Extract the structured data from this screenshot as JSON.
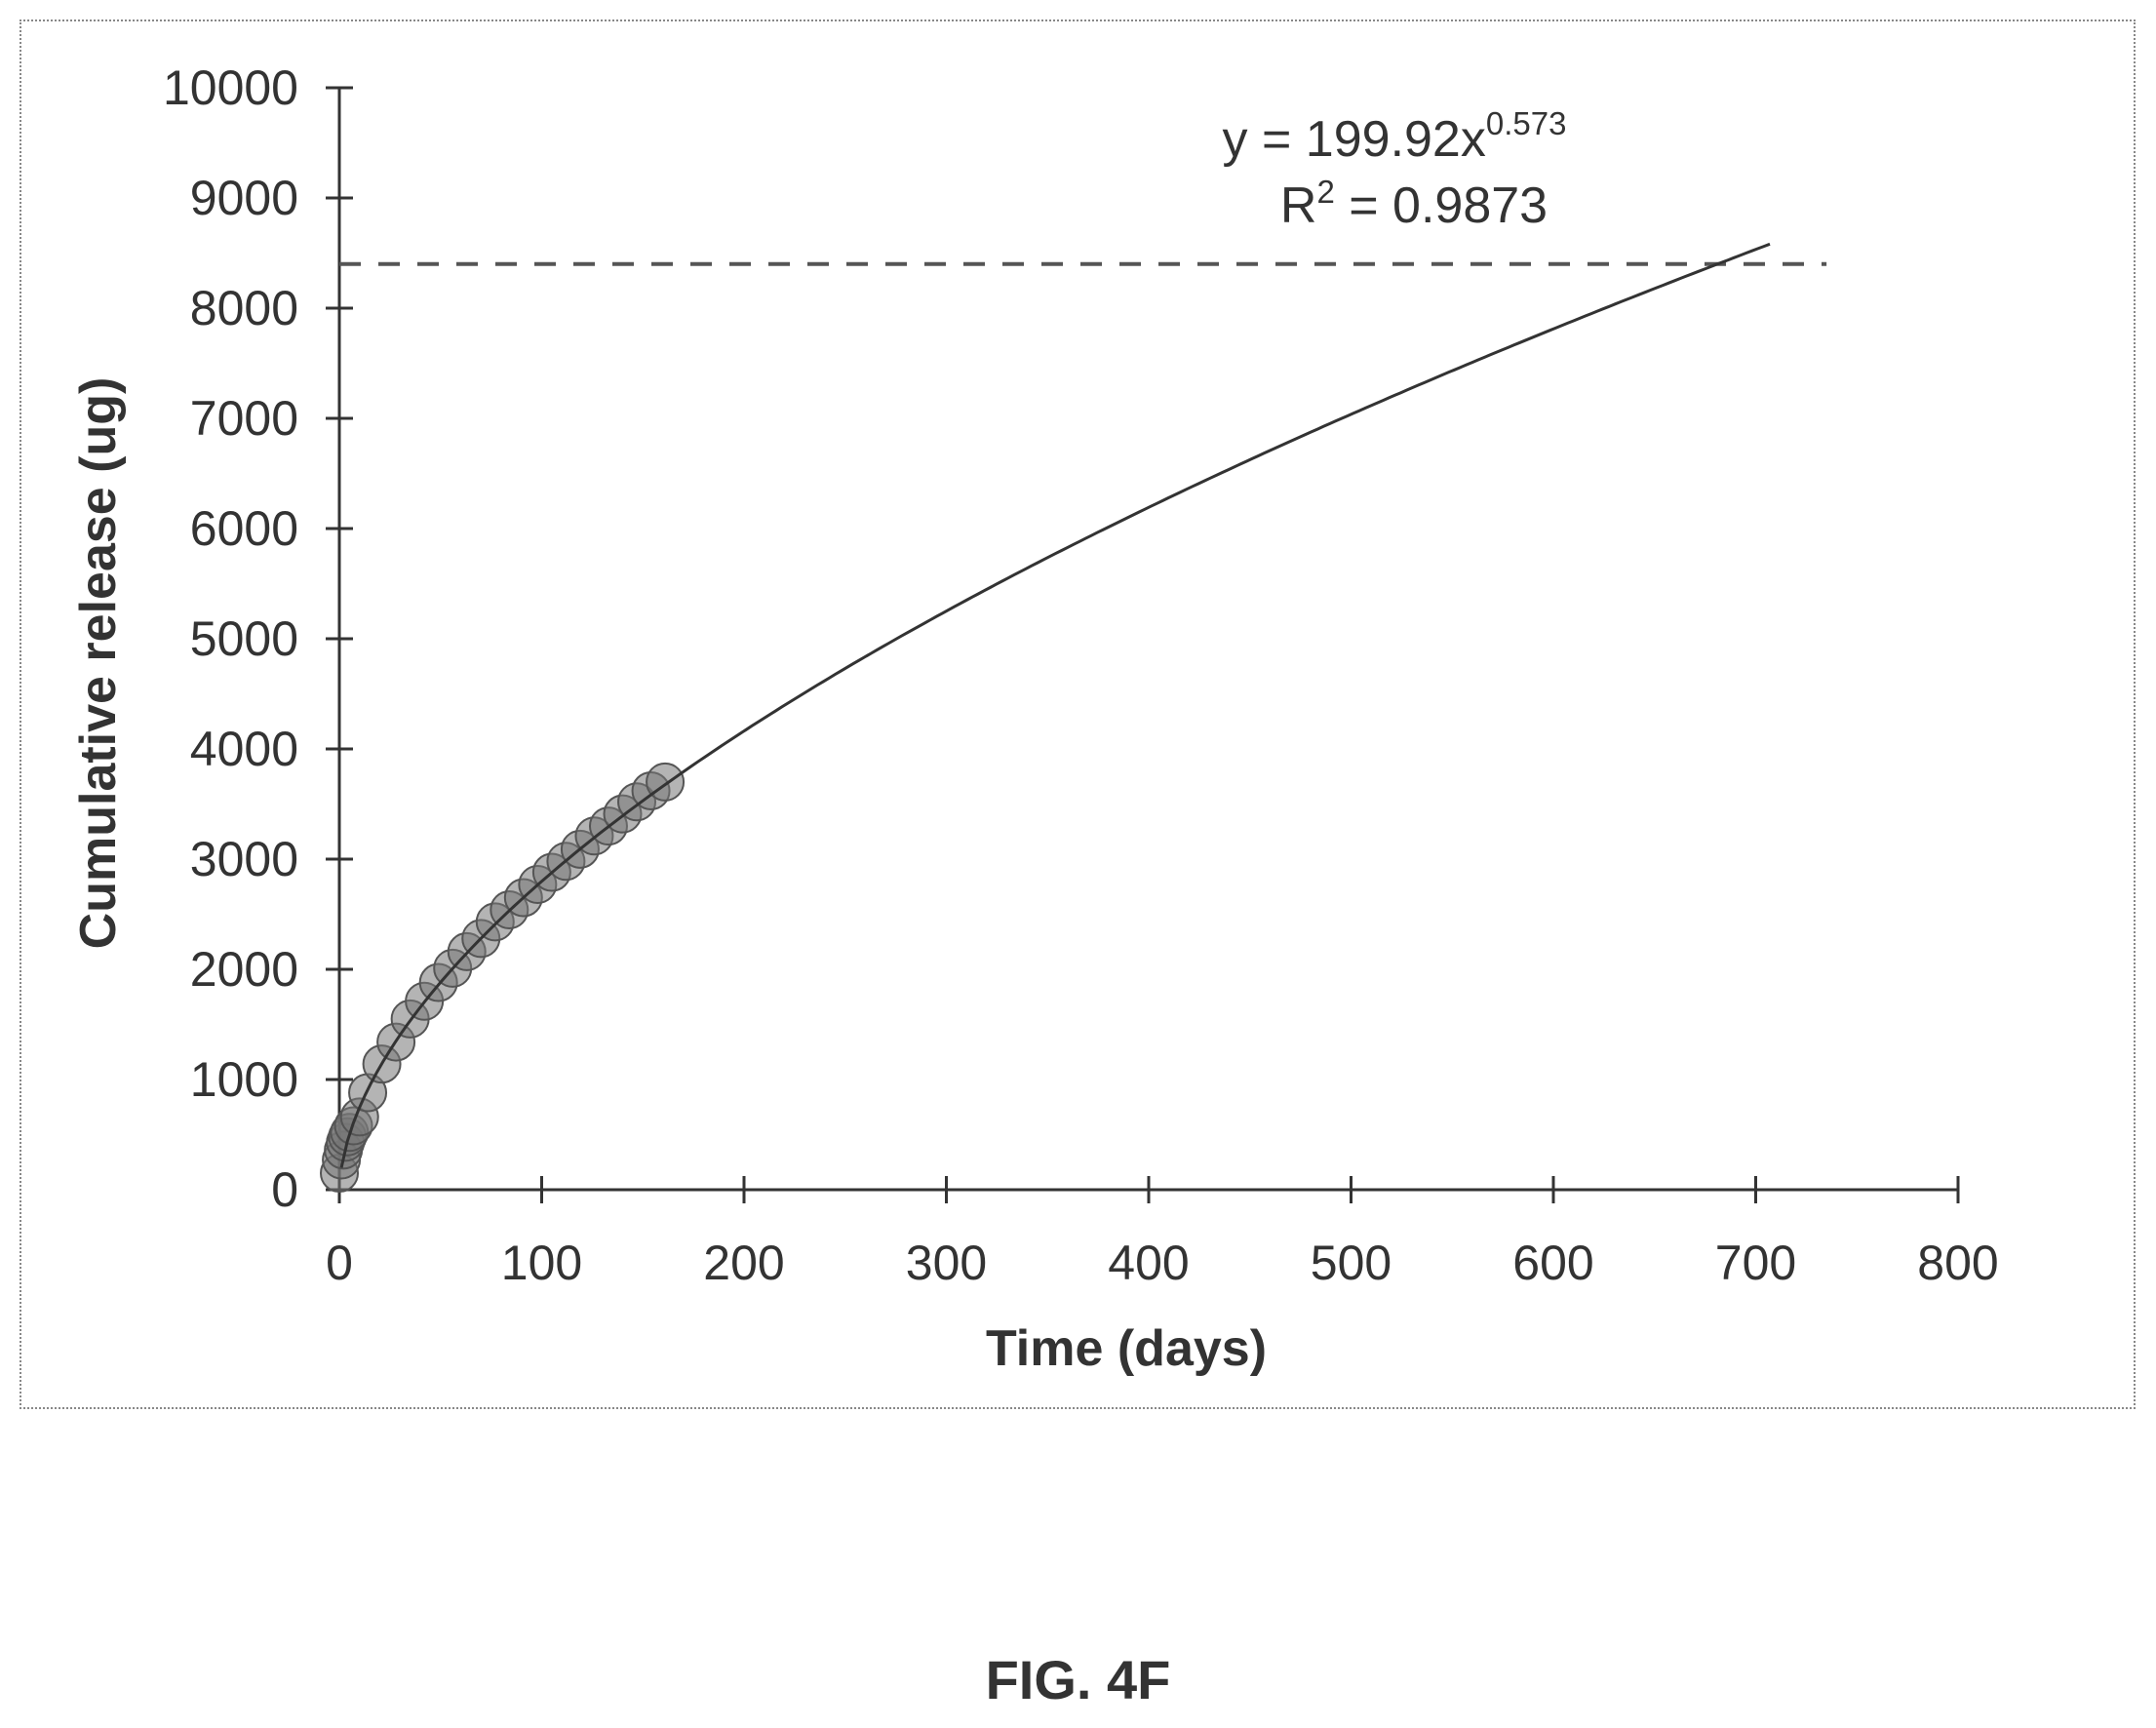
{
  "figure": {
    "caption": "FIG. 4F"
  },
  "chart_data": {
    "type": "scatter",
    "title": "",
    "xlabel": "Time (days)",
    "ylabel": "Cumulative release (ug)",
    "xlim": [
      0,
      800
    ],
    "ylim": [
      0,
      10000
    ],
    "xticks": [
      0,
      100,
      200,
      300,
      400,
      500,
      600,
      700,
      800
    ],
    "yticks": [
      0,
      1000,
      2000,
      3000,
      4000,
      5000,
      6000,
      7000,
      8000,
      9000,
      10000
    ],
    "grid": false,
    "legend": "none",
    "series": [
      {
        "kind": "points",
        "x": [
          0,
          1,
          2,
          3,
          4,
          5,
          7,
          10,
          14,
          21,
          28,
          35,
          42,
          49,
          56,
          63,
          70,
          77,
          84,
          91,
          98,
          105,
          112,
          119,
          126,
          133,
          140,
          147,
          154,
          161
        ],
        "y": [
          150,
          270,
          360,
          430,
          480,
          520,
          580,
          660,
          880,
          1140,
          1340,
          1550,
          1710,
          1880,
          2010,
          2160,
          2280,
          2430,
          2540,
          2650,
          2770,
          2880,
          2980,
          3090,
          3210,
          3300,
          3410,
          3520,
          3620,
          3700
        ],
        "color": "#555555"
      },
      {
        "kind": "power-fit",
        "coefficient": 199.92,
        "exponent": 0.573,
        "x_range": [
          1,
          707
        ],
        "color": "#333333"
      },
      {
        "kind": "horizontal-dashed",
        "y": 8400,
        "x_range": [
          0,
          735
        ],
        "color": "#555555"
      }
    ],
    "annotations": {
      "equation_prefix": "y = 199.92x",
      "equation_exponent": "0.573",
      "r_squared_prefix": "R",
      "r_squared_power": "2",
      "r_squared_value": " = 0.9873"
    }
  }
}
